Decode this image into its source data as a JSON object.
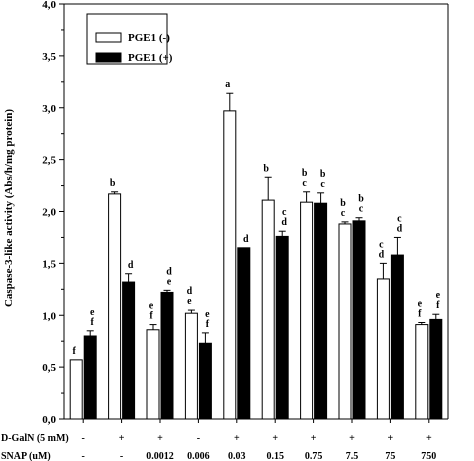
{
  "chart_data": {
    "type": "bar",
    "title": "",
    "xlabel": "",
    "ylabel": "Caspase-3-like activity (Abs/h/mg protein)",
    "ylim": [
      0,
      4.0
    ],
    "yticks": [
      "0,0",
      "0,5",
      "1,0",
      "1,5",
      "2,0",
      "2,5",
      "3,0",
      "3,5",
      "4,0"
    ],
    "legend_position": "top-left",
    "series": [
      {
        "name": "PGE1 (-)",
        "fill": "#ffffff",
        "values": [
          0.57,
          2.17,
          0.86,
          1.02,
          2.97,
          2.11,
          2.09,
          1.88,
          1.35,
          0.91
        ],
        "errors": [
          0.0,
          0.02,
          0.05,
          0.03,
          0.17,
          0.22,
          0.1,
          0.02,
          0.15,
          0.02
        ],
        "letters": [
          "f",
          "b",
          "e\nf",
          "d\ne",
          "a",
          "b",
          "b\nc",
          "b\nc",
          "c\nd",
          "e\nf"
        ]
      },
      {
        "name": "PGE1 (+)",
        "fill": "#000000",
        "values": [
          0.8,
          1.32,
          1.22,
          0.73,
          1.65,
          1.76,
          2.08,
          1.91,
          1.58,
          0.96
        ],
        "errors": [
          0.05,
          0.08,
          0.02,
          0.1,
          0.0,
          0.05,
          0.1,
          0.03,
          0.17,
          0.05
        ],
        "letters": [
          "e\nf",
          "d",
          "d\ne",
          "e\nf",
          "d",
          "c\nd",
          "b\nc",
          "b\nc",
          "c\nd",
          "e\nf"
        ]
      }
    ],
    "groups": [
      {
        "galn": "-",
        "snap": "-"
      },
      {
        "galn": "+",
        "snap": "-"
      },
      {
        "galn": "+",
        "snap": "0.0012"
      },
      {
        "galn": "-",
        "snap": "0.006"
      },
      {
        "galn": "+",
        "snap": "0.03"
      },
      {
        "galn": "+",
        "snap": "0.15"
      },
      {
        "galn": "+",
        "snap": "0.75"
      },
      {
        "galn": "+",
        "snap": "7.5"
      },
      {
        "galn": "+",
        "snap": "75"
      },
      {
        "galn": "+",
        "snap": "750"
      }
    ],
    "row_labels": {
      "galn": "D-GalN (5 mM)",
      "snap": "SNAP (uM)"
    }
  }
}
